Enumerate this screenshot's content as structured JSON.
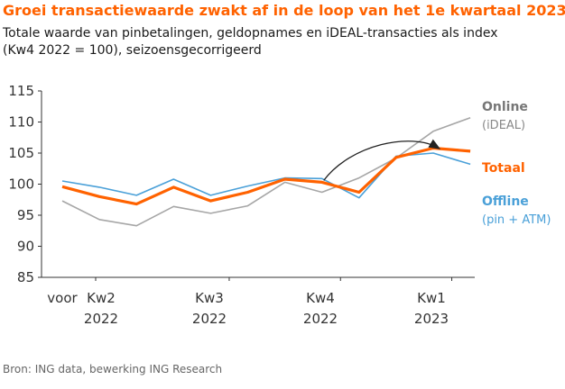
{
  "title": "Groei transactiewaarde zwakt af in de loop van het 1e kwartaal 2023",
  "subtitle_line1": "Totale waarde van pinbetalingen, geldopnames en iDEAL-transacties als index",
  "subtitle_line2": "(Kw4 2022 = 100), seizoensgecorrigeerd",
  "source": "Bron: ING data, bewerking ING Research",
  "colors": {
    "online": "#a6a6a6",
    "totaal": "#ff6200",
    "offline": "#4aa0d8",
    "arrow": "#222222",
    "axis": "#333333"
  },
  "chart_data": {
    "type": "line",
    "title": "Groei transactiewaarde zwakt af in de loop van het 1e kwartaal 2023",
    "ylim": [
      85,
      115
    ],
    "yticks": [
      85,
      90,
      95,
      100,
      105,
      110,
      115
    ],
    "grid": false,
    "x_tick_labels": [
      {
        "line1": "voor",
        "line2": ""
      },
      {
        "line1": "Kw2",
        "line2": "2022"
      },
      {
        "line1": "Kw3",
        "line2": "2022"
      },
      {
        "line1": "Kw4",
        "line2": "2022"
      },
      {
        "line1": "Kw1",
        "line2": "2023"
      }
    ],
    "series": [
      {
        "name": "Online",
        "sublabel": "(iDEAL)",
        "values": [
          97.3,
          94.3,
          93.3,
          96.4,
          95.3,
          96.5,
          100.3,
          98.7,
          101.0,
          104.2,
          108.5,
          110.7
        ]
      },
      {
        "name": "Offline",
        "sublabel": "(pin + ATM)",
        "values": [
          100.5,
          99.5,
          98.2,
          100.8,
          98.2,
          99.7,
          101.0,
          100.9,
          97.8,
          104.5,
          105.0,
          103.2
        ]
      },
      {
        "name": "Totaal",
        "sublabel": "",
        "values": [
          99.6,
          98.0,
          96.8,
          99.5,
          97.3,
          98.7,
          100.8,
          100.3,
          98.7,
          104.3,
          105.8,
          105.3
        ]
      }
    ]
  }
}
